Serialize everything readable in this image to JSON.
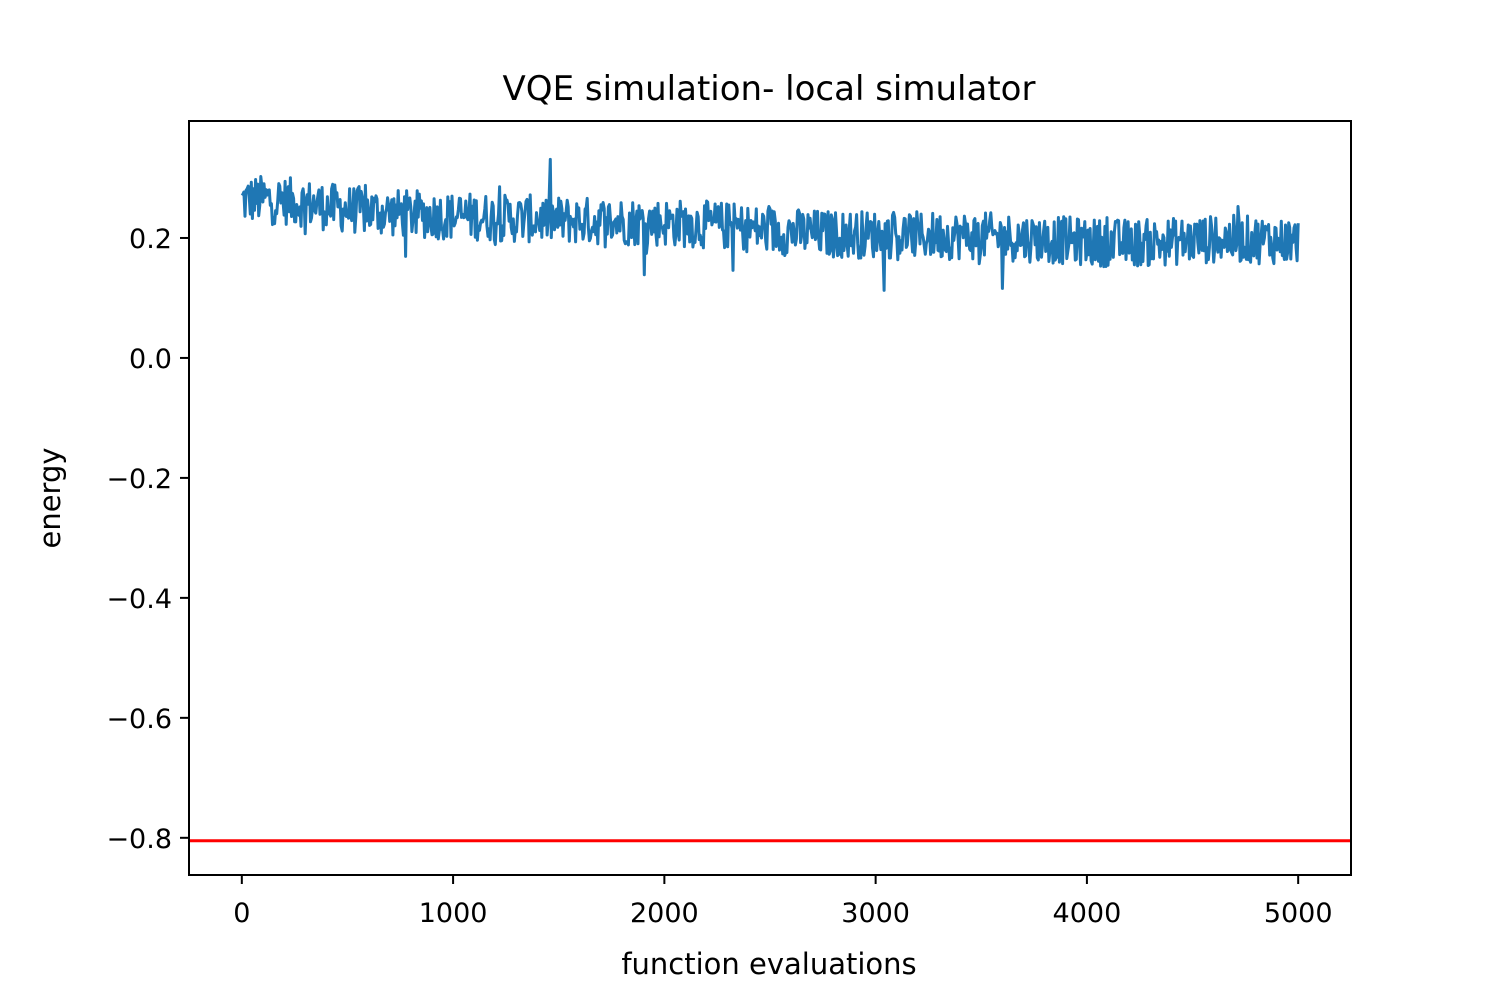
{
  "chart_data": {
    "type": "line",
    "title": "VQE simulation- local simulator",
    "xlabel": "function evaluations",
    "ylabel": "energy",
    "xlim": [
      -250,
      5250
    ],
    "ylim": [
      -0.862,
      0.395
    ],
    "xticks": [
      0,
      1000,
      2000,
      3000,
      4000,
      5000
    ],
    "xtick_labels": [
      "0",
      "1000",
      "2000",
      "3000",
      "4000",
      "5000"
    ],
    "yticks": [
      0.2,
      0.0,
      -0.2,
      -0.4,
      -0.6,
      -0.8
    ],
    "ytick_labels": [
      "0.2",
      "0.0",
      "−0.2",
      "−0.4",
      "−0.6",
      "−0.8"
    ],
    "grid": false,
    "series": [
      {
        "color": "#1f77b4",
        "x": [
          0,
          100,
          200,
          300,
          400,
          500,
          600,
          700,
          800,
          900,
          1000,
          1100,
          1200,
          1300,
          1400,
          1500,
          1600,
          1700,
          1800,
          1900,
          2000,
          2100,
          2200,
          2300,
          2400,
          2500,
          2600,
          2700,
          2800,
          2900,
          3000,
          3100,
          3200,
          3300,
          3400,
          3500,
          3600,
          3700,
          3800,
          3900,
          4000,
          4100,
          4200,
          4300,
          4400,
          4500,
          4600,
          4700,
          4800,
          4900,
          5000
        ],
        "y": [
          0.262,
          0.265,
          0.262,
          0.258,
          0.252,
          0.248,
          0.245,
          0.242,
          0.24,
          0.238,
          0.236,
          0.236,
          0.234,
          0.232,
          0.232,
          0.23,
          0.229,
          0.228,
          0.228,
          0.226,
          0.226,
          0.224,
          0.222,
          0.22,
          0.216,
          0.212,
          0.21,
          0.208,
          0.206,
          0.206,
          0.206,
          0.205,
          0.204,
          0.204,
          0.204,
          0.203,
          0.202,
          0.2,
          0.198,
          0.196,
          0.193,
          0.192,
          0.192,
          0.192,
          0.194,
          0.196,
          0.198,
          0.198,
          0.197,
          0.196,
          0.195
        ],
        "noise_amplitude": 0.04,
        "x_step": 5
      },
      {
        "color": "#ff0000",
        "type": "hline",
        "y": -0.805
      }
    ]
  }
}
